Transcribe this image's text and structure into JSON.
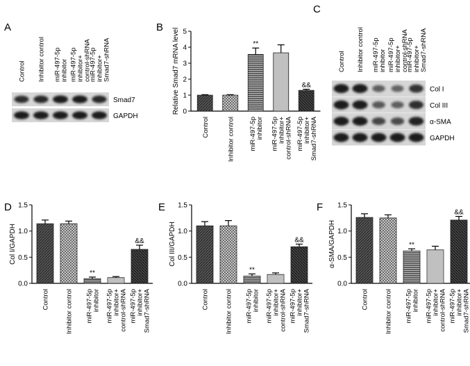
{
  "panel_letters": [
    "A",
    "B",
    "C",
    "D",
    "E",
    "F"
  ],
  "panelA": {
    "lanes": [
      "Control",
      "Inhibitor control",
      "miR-497-5p inhibitor",
      "miR-497-5p inhibitor+ control-shRNA",
      "miR-497-5p inhibitor+ Smad7-shRNA"
    ],
    "bands": [
      "Smad7",
      "GAPDH"
    ],
    "intensity": {
      "Smad7": [
        0.85,
        0.9,
        1,
        1,
        0.9
      ],
      "GAPDH": [
        1,
        1,
        1,
        1,
        1
      ]
    }
  },
  "panelC": {
    "lanes": [
      "Control",
      "Inhibitor control",
      "miR-497-5p inhibitor",
      "miR-497-5p inhibitor+ control-shRNA",
      "miR-497-5p inhibitor+ Smad7-shRNA"
    ],
    "bands": [
      "Col I",
      "Col III",
      "α-SMA",
      "GAPDH"
    ],
    "intensity": {
      "Col I": [
        1,
        1,
        0.45,
        0.4,
        0.8
      ],
      "Col III": [
        1,
        1,
        0.5,
        0.45,
        0.85
      ],
      "α-SMA": [
        1,
        1,
        0.65,
        0.6,
        0.95
      ],
      "GAPDH": [
        1,
        1,
        1,
        1,
        1
      ]
    }
  },
  "colors": {
    "bar_fill": [
      "#4a4a4a",
      "#cfcfcf",
      "#8a8a8a",
      "#d8d8d8",
      "#3a3a3a"
    ],
    "blot_bg": "#d6d6d6",
    "band": "#1a1a1a"
  },
  "chart_data": [
    {
      "panel": "B",
      "type": "bar",
      "categories": [
        "Control",
        "Inhibitor control",
        "miR-497-5p inhibitor",
        "miR-497-5p inhibitor+ control-shRNA",
        "miR-497-5p inhibitor+ Smad7-shRNA"
      ],
      "values": [
        1.0,
        1.0,
        3.55,
        3.65,
        1.3
      ],
      "errors": [
        0.03,
        0.03,
        0.4,
        0.5,
        0.07
      ],
      "annotations": [
        "",
        "",
        "**",
        "",
        "&&"
      ],
      "ylabel": "Relative Smad7 mRNA level",
      "ylim": [
        0,
        5
      ],
      "yticks": [
        0,
        1,
        2,
        3,
        4,
        5
      ]
    },
    {
      "panel": "D",
      "type": "bar",
      "categories": [
        "Control",
        "Inhibitor control",
        "miR-497-5p inhibitor",
        "miR-497-5p inhibitor+ control-shRNA",
        "miR-497-5p inhibitor+ Smad7-shRNA"
      ],
      "values": [
        1.14,
        1.14,
        0.09,
        0.11,
        0.65
      ],
      "errors": [
        0.07,
        0.05,
        0.03,
        0.02,
        0.08
      ],
      "annotations": [
        "",
        "",
        "**",
        "",
        "&&"
      ],
      "ylabel": "Col I/GAPDH",
      "ylim": [
        0,
        1.5
      ],
      "yticks": [
        0.0,
        0.5,
        1.0,
        1.5
      ]
    },
    {
      "panel": "E",
      "type": "bar",
      "categories": [
        "Control",
        "Inhibitor control",
        "miR-497-5p inhibitor",
        "miR-497-5p inhibitor+ control-shRNA",
        "miR-497-5p inhibitor+ Smad7-shRNA"
      ],
      "values": [
        1.1,
        1.1,
        0.14,
        0.17,
        0.7
      ],
      "errors": [
        0.08,
        0.1,
        0.04,
        0.03,
        0.05
      ],
      "annotations": [
        "",
        "",
        "**",
        "",
        "&&"
      ],
      "ylabel": "Col III/GAPDH",
      "ylim": [
        0,
        1.5
      ],
      "yticks": [
        0.0,
        0.5,
        1.0,
        1.5
      ]
    },
    {
      "panel": "F",
      "type": "bar",
      "categories": [
        "Control",
        "Inhibitor control",
        "miR-497-5p inhibitor",
        "miR-497-5p inhibitor+ control-shRNA",
        "miR-497-5p inhibitor+ Smad7-shRNA"
      ],
      "values": [
        1.26,
        1.25,
        0.62,
        0.64,
        1.21
      ],
      "errors": [
        0.07,
        0.06,
        0.04,
        0.07,
        0.07
      ],
      "annotations": [
        "",
        "",
        "**",
        "",
        "&&"
      ],
      "ylabel": "α-SMA/GAPDH",
      "ylim": [
        0,
        1.5
      ],
      "yticks": [
        0.0,
        0.5,
        1.0,
        1.5
      ]
    }
  ]
}
